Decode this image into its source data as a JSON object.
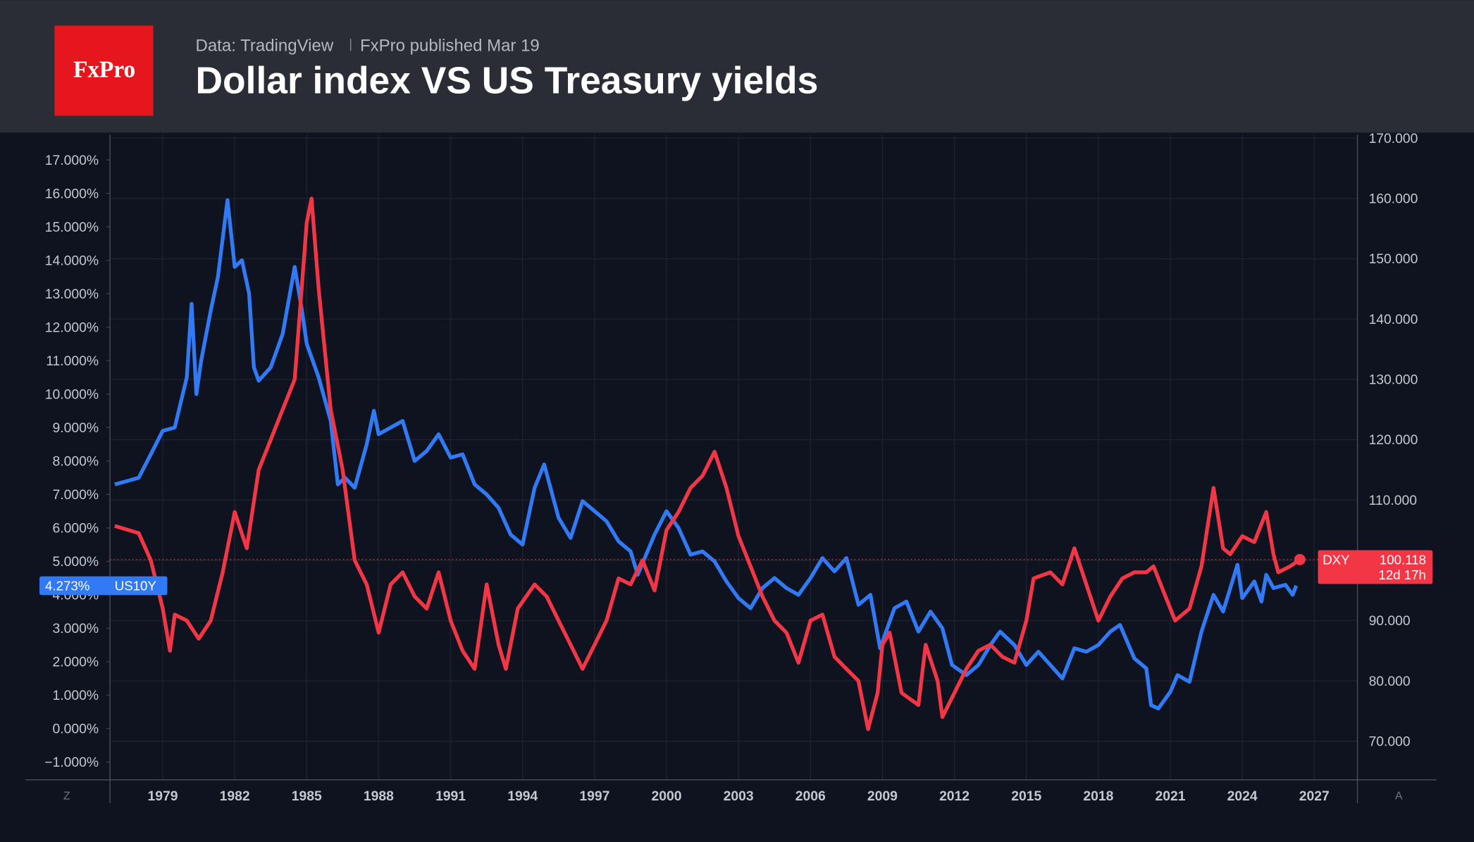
{
  "header": {
    "logo": "FxPro",
    "source": "Data: TradingView",
    "published": "FxPro published Mar 19"
  },
  "ui": {
    "left_button": "Z",
    "right_button": "A"
  },
  "chart_data": {
    "type": "line",
    "title": "Dollar index VS US Treasury yields",
    "grid": true,
    "xlim": [
      1976.8,
      2028.8
    ],
    "xticks": [
      1979,
      1982,
      1985,
      1988,
      1991,
      1994,
      1997,
      2000,
      2003,
      2006,
      2009,
      2012,
      2015,
      2018,
      2021,
      2024,
      2027
    ],
    "ylim": [
      -1.53,
      17.76
    ],
    "yticks": [
      {
        "value": -1,
        "label": "−1.000%"
      },
      {
        "value": 0,
        "label": "0.000%"
      },
      {
        "value": 1,
        "label": "1.000%"
      },
      {
        "value": 2,
        "label": "2.000%"
      },
      {
        "value": 3,
        "label": "3.000%"
      },
      {
        "value": 4,
        "label": "4.000%"
      },
      {
        "value": 5,
        "label": "5.000%"
      },
      {
        "value": 6,
        "label": "6.000%"
      },
      {
        "value": 7,
        "label": "7.000%"
      },
      {
        "value": 8,
        "label": "8.000%"
      },
      {
        "value": 9,
        "label": "9.000%"
      },
      {
        "value": 10,
        "label": "10.000%"
      },
      {
        "value": 11,
        "label": "11.000%"
      },
      {
        "value": 12,
        "label": "12.000%"
      },
      {
        "value": 13,
        "label": "13.000%"
      },
      {
        "value": 14,
        "label": "14.000%"
      },
      {
        "value": 15,
        "label": "15.000%"
      },
      {
        "value": 16,
        "label": "16.000%"
      },
      {
        "value": 17,
        "label": "17.000%"
      }
    ],
    "y2lim": [
      63.6,
      170.6
    ],
    "y2ticks": [
      {
        "value": 70,
        "label": "70.000"
      },
      {
        "value": 80,
        "label": "80.000"
      },
      {
        "value": 90,
        "label": "90.000"
      },
      {
        "value": 100,
        "label": "100.000"
      },
      {
        "value": 110,
        "label": "110.000"
      },
      {
        "value": 120,
        "label": "120.000"
      },
      {
        "value": 130,
        "label": "130.000"
      },
      {
        "value": 140,
        "label": "140.000"
      },
      {
        "value": 150,
        "label": "150.000"
      },
      {
        "value": 160,
        "label": "160.000"
      },
      {
        "value": 170,
        "label": "170.000"
      }
    ],
    "series": [
      {
        "name": "US10Y",
        "color": "#3179f5",
        "last_label": "4.273%",
        "x": [
          1977.0,
          1977.5,
          1978.0,
          1978.5,
          1979.0,
          1979.5,
          1980.0,
          1980.2,
          1980.4,
          1980.6,
          1981.0,
          1981.3,
          1981.7,
          1982.0,
          1982.3,
          1982.6,
          1982.8,
          1983.0,
          1983.5,
          1984.0,
          1984.5,
          1984.8,
          1985.0,
          1985.5,
          1986.0,
          1986.3,
          1986.6,
          1987.0,
          1987.5,
          1987.8,
          1988.0,
          1988.5,
          1989.0,
          1989.5,
          1990.0,
          1990.5,
          1991.0,
          1991.5,
          1992.0,
          1992.5,
          1993.0,
          1993.5,
          1994.0,
          1994.5,
          1994.9,
          1995.5,
          1996.0,
          1996.5,
          1997.0,
          1997.5,
          1998.0,
          1998.5,
          1998.8,
          1999.5,
          2000.0,
          2000.5,
          2001.0,
          2001.5,
          2002.0,
          2002.5,
          2003.0,
          2003.5,
          2004.0,
          2004.5,
          2005.0,
          2005.5,
          2006.0,
          2006.5,
          2007.0,
          2007.5,
          2008.0,
          2008.5,
          2008.9,
          2009.5,
          2010.0,
          2010.5,
          2011.0,
          2011.5,
          2011.9,
          2012.5,
          2013.0,
          2013.5,
          2013.9,
          2014.5,
          2015.0,
          2015.5,
          2016.0,
          2016.5,
          2017.0,
          2017.5,
          2018.0,
          2018.5,
          2018.9,
          2019.5,
          2020.0,
          2020.2,
          2020.5,
          2021.0,
          2021.3,
          2021.8,
          2022.3,
          2022.8,
          2023.2,
          2023.8,
          2024.0,
          2024.5,
          2024.8,
          2025.0,
          2025.3,
          2025.8,
          2026.1,
          2026.25
        ],
        "values": [
          7.3,
          7.4,
          7.5,
          8.2,
          8.9,
          9.0,
          10.5,
          12.7,
          10.0,
          11.0,
          12.5,
          13.5,
          15.8,
          13.8,
          14.0,
          13.0,
          10.8,
          10.4,
          10.8,
          11.8,
          13.8,
          12.5,
          11.5,
          10.5,
          9.2,
          7.3,
          7.5,
          7.2,
          8.5,
          9.5,
          8.8,
          9.0,
          9.2,
          8.0,
          8.3,
          8.8,
          8.1,
          8.2,
          7.3,
          7.0,
          6.6,
          5.8,
          5.5,
          7.2,
          7.9,
          6.3,
          5.7,
          6.8,
          6.5,
          6.2,
          5.6,
          5.3,
          4.6,
          5.8,
          6.5,
          6.0,
          5.2,
          5.3,
          5.0,
          4.4,
          3.9,
          3.6,
          4.2,
          4.5,
          4.2,
          4.0,
          4.5,
          5.1,
          4.7,
          5.1,
          3.7,
          4.0,
          2.4,
          3.6,
          3.8,
          2.9,
          3.5,
          3.0,
          1.9,
          1.6,
          1.9,
          2.5,
          2.9,
          2.5,
          1.9,
          2.3,
          1.9,
          1.5,
          2.4,
          2.3,
          2.5,
          2.9,
          3.1,
          2.1,
          1.8,
          0.7,
          0.6,
          1.1,
          1.6,
          1.4,
          2.9,
          4.0,
          3.5,
          4.9,
          3.9,
          4.4,
          3.8,
          4.6,
          4.2,
          4.3,
          4.0,
          4.273
        ]
      },
      {
        "name": "DXY",
        "color": "#f23645",
        "axis": "y2",
        "last_label": "100.118",
        "countdown": "12d 17h",
        "x": [
          1977.0,
          1978.0,
          1978.5,
          1979.0,
          1979.3,
          1979.5,
          1980.0,
          1980.5,
          1981.0,
          1981.5,
          1982.0,
          1982.5,
          1983.0,
          1983.5,
          1984.0,
          1984.5,
          1985.0,
          1985.2,
          1985.5,
          1986.0,
          1986.5,
          1987.0,
          1987.5,
          1988.0,
          1988.5,
          1989.0,
          1989.5,
          1990.0,
          1990.5,
          1991.0,
          1991.5,
          1992.0,
          1992.5,
          1993.0,
          1993.3,
          1993.8,
          1994.5,
          1995.0,
          1995.5,
          1996.0,
          1996.5,
          1997.0,
          1997.5,
          1998.0,
          1998.5,
          1999.0,
          1999.5,
          2000.0,
          2000.5,
          2001.0,
          2001.5,
          2002.0,
          2002.5,
          2003.0,
          2003.5,
          2004.0,
          2004.5,
          2005.0,
          2005.5,
          2006.0,
          2006.5,
          2007.0,
          2007.5,
          2008.0,
          2008.4,
          2008.8,
          2009.0,
          2009.3,
          2009.8,
          2010.5,
          2010.8,
          2011.3,
          2011.5,
          2012.0,
          2012.5,
          2013.0,
          2013.5,
          2014.0,
          2014.5,
          2015.0,
          2015.3,
          2016.0,
          2016.5,
          2017.0,
          2017.5,
          2018.0,
          2018.5,
          2019.0,
          2019.5,
          2020.0,
          2020.3,
          2020.8,
          2021.2,
          2021.8,
          2022.3,
          2022.8,
          2023.2,
          2023.5,
          2024.0,
          2024.5,
          2025.0,
          2025.3,
          2025.5,
          2026.0,
          2026.4
        ],
        "values": [
          105.7,
          104.5,
          100,
          92,
          85,
          91,
          90,
          87,
          90,
          98,
          108,
          102,
          115,
          120,
          125,
          130,
          156,
          160,
          145,
          125,
          115,
          100,
          96,
          88,
          96,
          98,
          94,
          92,
          98,
          90,
          85,
          82,
          96,
          86,
          82,
          92,
          96,
          94,
          90,
          86,
          82,
          86,
          90,
          97,
          96,
          100,
          95,
          105,
          108,
          112,
          114,
          118,
          112,
          104,
          99,
          94,
          90,
          88,
          83,
          90,
          91,
          84,
          82,
          80,
          72,
          78,
          86,
          88,
          78,
          76,
          86,
          80,
          74,
          78,
          82,
          85,
          86,
          84,
          83,
          90,
          97,
          98,
          96,
          102,
          96,
          90,
          94,
          97,
          98,
          98,
          99,
          94,
          90,
          92,
          99,
          112,
          102,
          101,
          104,
          103,
          108,
          101,
          98,
          99,
          100.118
        ]
      }
    ]
  }
}
